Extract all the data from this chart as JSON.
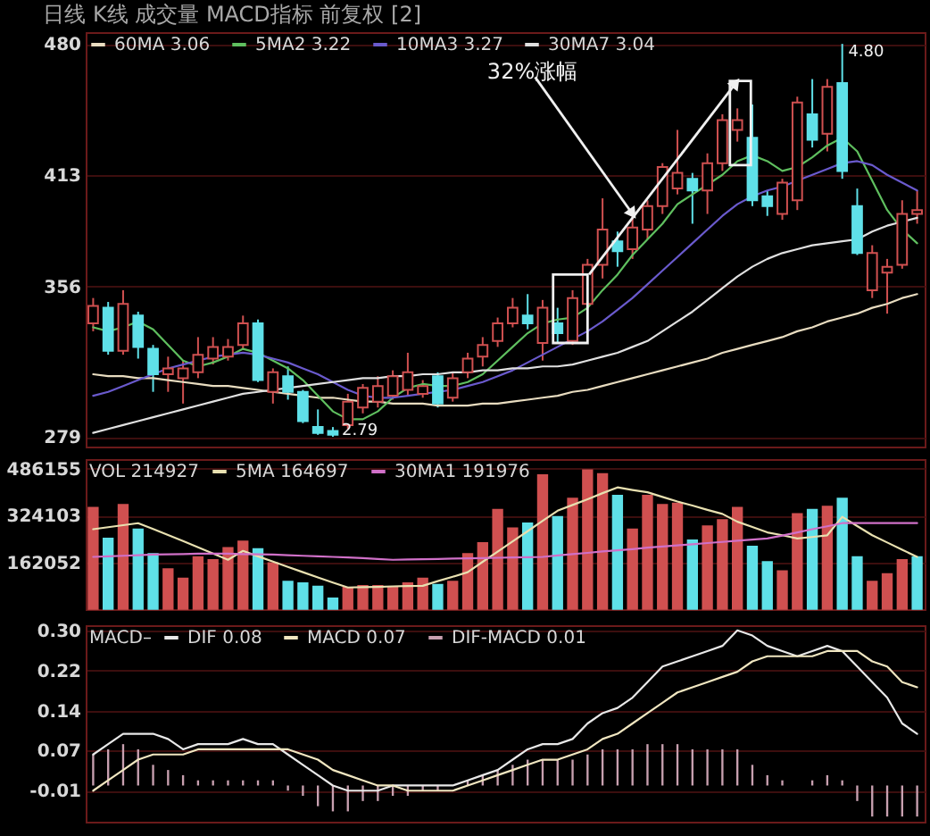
{
  "chart_data": [
    {
      "type": "candlestick",
      "title": "日线 K线 成交量 MACD指标 前复权 [2]",
      "categories": [
        null,
        null,
        null,
        null,
        null,
        null,
        null,
        null,
        null,
        null,
        null,
        null,
        null,
        null,
        null,
        null,
        null,
        null,
        null,
        null,
        null,
        null,
        null,
        null,
        null,
        null,
        null,
        null,
        null,
        null,
        null,
        null,
        null,
        null,
        null,
        null,
        null,
        null,
        null,
        null,
        null,
        null,
        null,
        null,
        null,
        null,
        null,
        null,
        null,
        null,
        null,
        null,
        null,
        null,
        null,
        null
      ],
      "ohlc": [
        [
          337,
          350,
          333,
          346
        ],
        [
          345,
          348,
          321,
          323
        ],
        [
          323,
          354,
          321,
          347
        ],
        [
          341,
          343,
          319,
          325
        ],
        [
          324,
          326,
          302,
          311
        ],
        [
          311,
          320,
          302,
          314
        ],
        [
          309,
          318,
          296,
          314
        ],
        [
          312,
          330,
          309,
          321
        ],
        [
          319,
          330,
          316,
          325
        ],
        [
          320,
          329,
          318,
          325
        ],
        [
          326,
          341,
          324,
          337
        ],
        [
          337,
          339,
          307,
          308
        ],
        [
          302,
          314,
          296,
          312
        ],
        [
          310,
          315,
          298,
          302
        ],
        [
          302,
          303,
          286,
          287
        ],
        [
          284,
          293,
          280,
          281
        ],
        [
          282,
          284,
          279,
          280
        ],
        [
          285,
          301,
          283,
          297
        ],
        [
          294,
          306,
          291,
          304
        ],
        [
          297,
          310,
          294,
          305
        ],
        [
          300,
          313,
          298,
          310
        ],
        [
          303,
          322,
          300,
          312
        ],
        [
          301,
          308,
          299,
          305
        ],
        [
          310,
          312,
          294,
          296
        ],
        [
          299,
          312,
          297,
          309
        ],
        [
          312,
          322,
          309,
          319
        ],
        [
          320,
          330,
          315,
          326
        ],
        [
          328,
          340,
          325,
          337
        ],
        [
          337,
          350,
          335,
          345
        ],
        [
          341,
          352,
          334,
          337
        ],
        [
          327,
          349,
          318,
          345
        ],
        [
          337,
          345,
          327,
          332
        ],
        [
          328,
          354,
          326,
          350
        ],
        [
          347,
          370,
          345,
          367
        ],
        [
          367,
          401,
          360,
          385
        ],
        [
          379,
          384,
          366,
          374
        ],
        [
          375,
          392,
          370,
          386
        ],
        [
          385,
          400,
          380,
          397
        ],
        [
          397,
          419,
          393,
          417
        ],
        [
          406,
          436,
          403,
          414
        ],
        [
          411,
          414,
          388,
          405
        ],
        [
          405,
          424,
          393,
          419
        ],
        [
          419,
          444,
          415,
          441
        ],
        [
          436,
          447,
          430,
          441
        ],
        [
          432,
          449,
          397,
          400
        ],
        [
          402,
          405,
          392,
          397
        ],
        [
          393,
          411,
          390,
          409
        ],
        [
          400,
          453,
          395,
          450
        ],
        [
          444,
          462,
          427,
          431
        ],
        [
          434,
          462,
          425,
          458
        ],
        [
          460,
          480,
          411,
          415
        ],
        [
          397,
          406,
          372,
          373
        ],
        [
          354,
          377,
          350,
          373
        ],
        [
          363,
          370,
          342,
          366
        ],
        [
          367,
          400,
          365,
          393
        ],
        [
          393,
          405,
          388,
          395
        ]
      ],
      "colors": [
        "#d05050",
        "#5fe0e8",
        "#d05050",
        "#5fe0e8",
        "#5fe0e8",
        "#d05050",
        "#d05050",
        "#d05050",
        "#d05050",
        "#d05050",
        "#d05050",
        "#5fe0e8",
        "#d05050",
        "#5fe0e8",
        "#5fe0e8",
        "#5fe0e8",
        "#5fe0e8",
        "#d05050",
        "#d05050",
        "#d05050",
        "#d05050",
        "#d05050",
        "#d05050",
        "#5fe0e8",
        "#d05050",
        "#d05050",
        "#d05050",
        "#d05050",
        "#d05050",
        "#5fe0e8",
        "#d05050",
        "#5fe0e8",
        "#d05050",
        "#d05050",
        "#d05050",
        "#5fe0e8",
        "#d05050",
        "#d05050",
        "#d05050",
        "#d05050",
        "#5fe0e8",
        "#d05050",
        "#d05050",
        "#d05050",
        "#5fe0e8",
        "#5fe0e8",
        "#d05050",
        "#d05050",
        "#5fe0e8",
        "#d05050",
        "#5fe0e8",
        "#5fe0e8",
        "#d05050",
        "#d05050",
        "#d05050",
        "#d05050"
      ],
      "series": [
        {
          "name": "60MA 3.06",
          "type": "line",
          "color": "#e8dcc0",
          "values": [
            311,
            310,
            310,
            309,
            309,
            308,
            307,
            306,
            305,
            305,
            304,
            303,
            302,
            301,
            300,
            299,
            299,
            298,
            297,
            297,
            296,
            296,
            296,
            295,
            295,
            295,
            296,
            296,
            297,
            298,
            299,
            300,
            302,
            303,
            305,
            307,
            309,
            311,
            313,
            315,
            317,
            319,
            322,
            324,
            326,
            328,
            330,
            333,
            335,
            338,
            340,
            342,
            345,
            347,
            350,
            352
          ]
        },
        {
          "name": "5MA2 3.22",
          "type": "line",
          "color": "#5fbf5f",
          "values": [
            335,
            333,
            335,
            338,
            334,
            326,
            318,
            315,
            317,
            320,
            324,
            322,
            318,
            314,
            308,
            300,
            292,
            288,
            288,
            292,
            299,
            304,
            306,
            305,
            305,
            307,
            311,
            318,
            325,
            332,
            337,
            339,
            340,
            345,
            354,
            362,
            372,
            380,
            388,
            398,
            403,
            408,
            413,
            420,
            423,
            420,
            415,
            417,
            422,
            428,
            432,
            425,
            410,
            395,
            385,
            378
          ]
        },
        {
          "name": "10MA3 3.27",
          "type": "line",
          "color": "#6a5acd",
          "values": [
            300,
            302,
            305,
            308,
            311,
            314,
            316,
            318,
            320,
            321,
            322,
            321,
            319,
            317,
            314,
            311,
            307,
            303,
            300,
            299,
            299,
            300,
            301,
            302,
            303,
            305,
            307,
            310,
            313,
            317,
            321,
            325,
            329,
            333,
            338,
            344,
            350,
            357,
            364,
            371,
            378,
            385,
            392,
            398,
            402,
            405,
            407,
            410,
            413,
            416,
            419,
            420,
            418,
            413,
            409,
            405
          ]
        },
        {
          "name": "30MA7 3.04",
          "type": "line",
          "color": "#e0e0e0",
          "values": [
            281,
            283,
            285,
            287,
            289,
            291,
            293,
            295,
            297,
            299,
            301,
            302,
            303,
            304,
            305,
            306,
            307,
            308,
            309,
            309,
            310,
            310,
            311,
            311,
            312,
            312,
            313,
            313,
            314,
            314,
            315,
            315,
            316,
            318,
            320,
            322,
            325,
            328,
            333,
            338,
            343,
            349,
            355,
            361,
            366,
            370,
            373,
            375,
            377,
            378,
            379,
            380,
            384,
            387,
            389,
            391
          ]
        }
      ],
      "ylim": [
        274,
        486
      ],
      "yticks": [
        279,
        356,
        413,
        480
      ],
      "grid": "y",
      "legend": "top left",
      "tick_labels": "y",
      "annotations": [
        "32%涨幅",
        "4.80",
        "2.79"
      ]
    },
    {
      "type": "bar",
      "categories": [
        null,
        null,
        null,
        null,
        null,
        null,
        null,
        null,
        null,
        null,
        null,
        null,
        null,
        null,
        null,
        null,
        null,
        null,
        null,
        null,
        null,
        null,
        null,
        null,
        null,
        null,
        null,
        null,
        null,
        null,
        null,
        null,
        null,
        null,
        null,
        null,
        null,
        null,
        null,
        null,
        null,
        null,
        null,
        null,
        null,
        null,
        null,
        null,
        null,
        null,
        null,
        null,
        null,
        null,
        null,
        null
      ],
      "series": [
        {
          "type": "bar",
          "values": [
            352000,
            245000,
            362000,
            277000,
            192000,
            139000,
            107000,
            181000,
            171000,
            213000,
            235000,
            209000,
            160000,
            96000,
            90000,
            79000,
            38000,
            75000,
            81000,
            81000,
            75000,
            90000,
            107000,
            85000,
            96000,
            192000,
            230000,
            345000,
            281000,
            298000,
            465000,
            320000,
            384000,
            482000,
            469000,
            394000,
            277000,
            394000,
            362000,
            367000,
            239000,
            288000,
            309000,
            352000,
            217000,
            164000,
            132000,
            330000,
            345000,
            356000,
            384000,
            181000,
            96000,
            122000,
            171000,
            181000
          ],
          "colors": [
            "#d05050",
            "#5fe0e8",
            "#d05050",
            "#5fe0e8",
            "#5fe0e8",
            "#d05050",
            "#d05050",
            "#d05050",
            "#d05050",
            "#d05050",
            "#d05050",
            "#5fe0e8",
            "#d05050",
            "#5fe0e8",
            "#5fe0e8",
            "#5fe0e8",
            "#5fe0e8",
            "#d05050",
            "#d05050",
            "#d05050",
            "#d05050",
            "#d05050",
            "#d05050",
            "#5fe0e8",
            "#d05050",
            "#d05050",
            "#d05050",
            "#d05050",
            "#d05050",
            "#5fe0e8",
            "#d05050",
            "#5fe0e8",
            "#d05050",
            "#d05050",
            "#d05050",
            "#5fe0e8",
            "#d05050",
            "#d05050",
            "#d05050",
            "#d05050",
            "#5fe0e8",
            "#d05050",
            "#d05050",
            "#d05050",
            "#5fe0e8",
            "#5fe0e8",
            "#d05050",
            "#d05050",
            "#5fe0e8",
            "#d05050",
            "#5fe0e8",
            "#5fe0e8",
            "#d05050",
            "#d05050",
            "#d05050",
            "#5fe0e8"
          ]
        },
        {
          "name": "5MA 164697",
          "type": "line",
          "color": "#e8e0b0",
          "values": [
            277000,
            284000,
            291000,
            298000,
            278000,
            257000,
            236000,
            214000,
            193000,
            171000,
            202000,
            183000,
            165000,
            146000,
            128000,
            110000,
            92000,
            75000,
            76000,
            77000,
            79000,
            80000,
            81000,
            97000,
            112000,
            128000,
            164000,
            199000,
            235000,
            270000,
            306000,
            341000,
            361000,
            381000,
            402000,
            422000,
            413000,
            405000,
            389000,
            373000,
            359000,
            344000,
            330000,
            303000,
            285000,
            266000,
            256000,
            245000,
            250000,
            256000,
            320000,
            288000,
            256000,
            231000,
            206000,
            181000
          ]
        },
        {
          "name": "30MA1 191976",
          "type": "line",
          "color": "#d070c8",
          "values": [
            181000,
            183000,
            185000,
            187000,
            189000,
            190000,
            191000,
            192000,
            192000,
            192000,
            191000,
            190000,
            189000,
            187000,
            185000,
            183000,
            181000,
            179000,
            177000,
            174000,
            171000,
            172000,
            173000,
            174000,
            175000,
            176000,
            177000,
            178000,
            179000,
            180000,
            181000,
            186000,
            191000,
            195000,
            200000,
            204000,
            208000,
            213000,
            217000,
            221000,
            225000,
            229000,
            233000,
            237000,
            241000,
            245000,
            255000,
            266000,
            277000,
            287000,
            298000,
            298000,
            298000,
            298000,
            298000,
            298000
          ]
        }
      ],
      "ylim": [
        0,
        520000
      ],
      "yticks": [
        162052,
        324103,
        486155
      ],
      "grid": "y",
      "legend": "top left",
      "legend_title": "VOL 214927",
      "tick_labels": "y"
    },
    {
      "type": "line",
      "categories": [
        null,
        null,
        null,
        null,
        null,
        null,
        null,
        null,
        null,
        null,
        null,
        null,
        null,
        null,
        null,
        null,
        null,
        null,
        null,
        null,
        null,
        null,
        null,
        null,
        null,
        null,
        null,
        null,
        null,
        null,
        null,
        null,
        null,
        null,
        null,
        null,
        null,
        null,
        null,
        null,
        null,
        null,
        null,
        null,
        null,
        null,
        null,
        null,
        null,
        null,
        null,
        null,
        null,
        null,
        null,
        null
      ],
      "series": [
        {
          "name": "DIF 0.08",
          "type": "line",
          "color": "#e8e8e8",
          "values": [
            0.06,
            0.08,
            0.1,
            0.1,
            0.1,
            0.09,
            0.07,
            0.08,
            0.08,
            0.08,
            0.09,
            0.08,
            0.08,
            0.06,
            0.04,
            0.02,
            0.0,
            -0.01,
            -0.01,
            -0.01,
            0.0,
            0.0,
            0.0,
            0.0,
            0.0,
            0.01,
            0.02,
            0.03,
            0.05,
            0.07,
            0.08,
            0.08,
            0.09,
            0.12,
            0.14,
            0.15,
            0.17,
            0.2,
            0.23,
            0.24,
            0.25,
            0.26,
            0.27,
            0.3,
            0.29,
            0.27,
            0.26,
            0.25,
            0.26,
            0.27,
            0.26,
            0.23,
            0.2,
            0.17,
            0.12,
            0.1
          ]
        },
        {
          "name": "MACD 0.07",
          "type": "line",
          "color": "#f0e6c0",
          "values": [
            -0.01,
            0.01,
            0.03,
            0.05,
            0.06,
            0.06,
            0.06,
            0.07,
            0.07,
            0.07,
            0.07,
            0.07,
            0.07,
            0.07,
            0.06,
            0.05,
            0.03,
            0.02,
            0.01,
            0.0,
            0.0,
            -0.01,
            -0.01,
            -0.01,
            -0.01,
            0.0,
            0.01,
            0.02,
            0.03,
            0.04,
            0.05,
            0.05,
            0.06,
            0.07,
            0.09,
            0.1,
            0.12,
            0.14,
            0.16,
            0.18,
            0.19,
            0.2,
            0.21,
            0.22,
            0.24,
            0.25,
            0.25,
            0.25,
            0.25,
            0.26,
            0.26,
            0.26,
            0.24,
            0.23,
            0.2,
            0.19
          ]
        },
        {
          "name": "DIF-MACD 0.01",
          "type": "bar",
          "color": "#c8a0b0",
          "values": [
            0.06,
            0.07,
            0.08,
            0.07,
            0.04,
            0.03,
            0.02,
            0.01,
            0.01,
            0.01,
            0.01,
            0.01,
            0.01,
            -0.01,
            -0.02,
            -0.04,
            -0.05,
            -0.05,
            -0.03,
            -0.03,
            -0.02,
            -0.02,
            -0.01,
            -0.01,
            0.0,
            0.01,
            0.02,
            0.03,
            0.04,
            0.05,
            0.05,
            0.05,
            0.05,
            0.06,
            0.07,
            0.07,
            0.07,
            0.08,
            0.08,
            0.08,
            0.07,
            0.07,
            0.07,
            0.07,
            0.04,
            0.02,
            0.01,
            0.0,
            0.01,
            0.02,
            0.01,
            -0.03,
            -0.06,
            -0.06,
            -0.06,
            -0.06
          ]
        }
      ],
      "ylim": [
        -0.07,
        0.31
      ],
      "yticks": [
        -0.01,
        {
          "value": 0.0675,
          "label": "0.07"
        },
        {
          "value": 0.145,
          "label": "0.14"
        },
        {
          "value": 0.2225,
          "label": "0.22"
        },
        {
          "value": 0.3,
          "label": "0.30"
        }
      ],
      "grid": "y",
      "legend": "top left",
      "legend_title": "MACD–",
      "tick_labels": "y"
    }
  ]
}
